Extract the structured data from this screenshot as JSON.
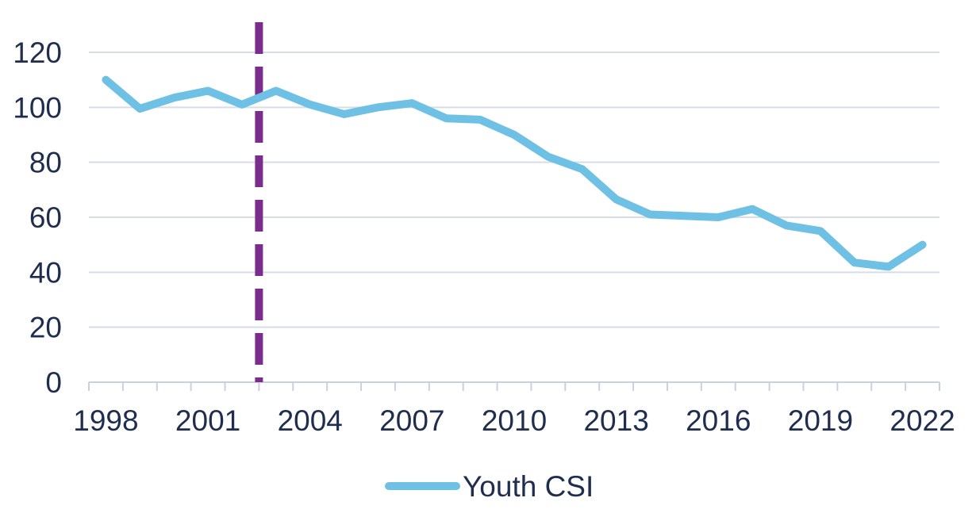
{
  "chart_data": {
    "type": "line",
    "title": "",
    "xlabel": "",
    "ylabel": "",
    "x": [
      1998,
      1999,
      2000,
      2001,
      2002,
      2003,
      2004,
      2005,
      2006,
      2007,
      2008,
      2009,
      2010,
      2011,
      2012,
      2013,
      2014,
      2015,
      2016,
      2017,
      2018,
      2019,
      2020,
      2021,
      2022
    ],
    "x_tick_labels": [
      "1998",
      "2001",
      "2004",
      "2007",
      "2010",
      "2013",
      "2016",
      "2019",
      "2022"
    ],
    "ylim": [
      0,
      120
    ],
    "y_ticks": [
      0,
      20,
      40,
      60,
      80,
      100,
      120
    ],
    "series": [
      {
        "name": "Youth CSI",
        "color": "#6ec1e4",
        "values": [
          110,
          99.5,
          103.5,
          106,
          101,
          106,
          101,
          97.5,
          100,
          101.5,
          96,
          95.5,
          90,
          82,
          77.5,
          66.5,
          61,
          60.5,
          60,
          63,
          57,
          55,
          43.5,
          42,
          50
        ]
      }
    ],
    "reference_line": {
      "x": 2002.5,
      "color": "#7b2d8e",
      "style": "dashed"
    },
    "grid": "horizontal",
    "gridline_color": "#d6dde9",
    "text_color": "#1f2d4f",
    "legend": {
      "position": "bottom",
      "entries": [
        "Youth CSI"
      ]
    }
  }
}
